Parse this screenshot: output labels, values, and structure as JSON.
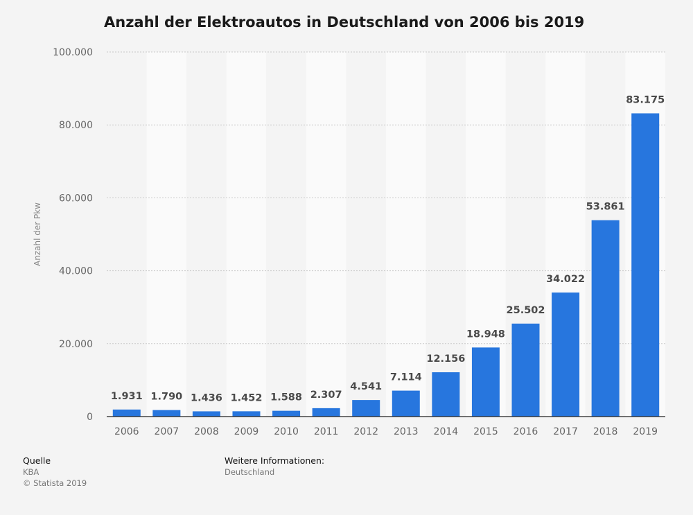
{
  "title": "Anzahl der Elektroautos in Deutschland von 2006 bis 2019",
  "colors": {
    "bar": "#2776de",
    "band_light": "#fafafa",
    "band_dark": "#f4f4f4",
    "grid": "#c9c9c9",
    "axis": "#222222",
    "tick_text": "#666666",
    "value_text": "#4a4a4a"
  },
  "chart_data": {
    "type": "bar",
    "title": "Anzahl der Elektroautos in Deutschland von 2006 bis 2019",
    "xlabel": "",
    "ylabel": "Anzahl der Pkw",
    "ylim": [
      0,
      100000
    ],
    "yticks": [
      0,
      20000,
      40000,
      60000,
      80000,
      100000
    ],
    "ytick_labels": [
      "0",
      "20.000",
      "40.000",
      "60.000",
      "80.000",
      "100.000"
    ],
    "grid": true,
    "categories": [
      "2006",
      "2007",
      "2008",
      "2009",
      "2010",
      "2011",
      "2012",
      "2013",
      "2014",
      "2015",
      "2016",
      "2017",
      "2018",
      "2019"
    ],
    "values": [
      1931,
      1790,
      1436,
      1452,
      1588,
      2307,
      4541,
      7114,
      12156,
      18948,
      25502,
      34022,
      53861,
      83175
    ],
    "value_labels": [
      "1.931",
      "1.790",
      "1.436",
      "1.452",
      "1.588",
      "2.307",
      "4.541",
      "7.114",
      "12.156",
      "18.948",
      "25.502",
      "34.022",
      "53.861",
      "83.175"
    ]
  },
  "footer": {
    "source_heading": "Quelle",
    "source": "KBA",
    "copyright": "© Statista 2019",
    "info_heading": "Weitere Informationen:",
    "info": "Deutschland"
  }
}
